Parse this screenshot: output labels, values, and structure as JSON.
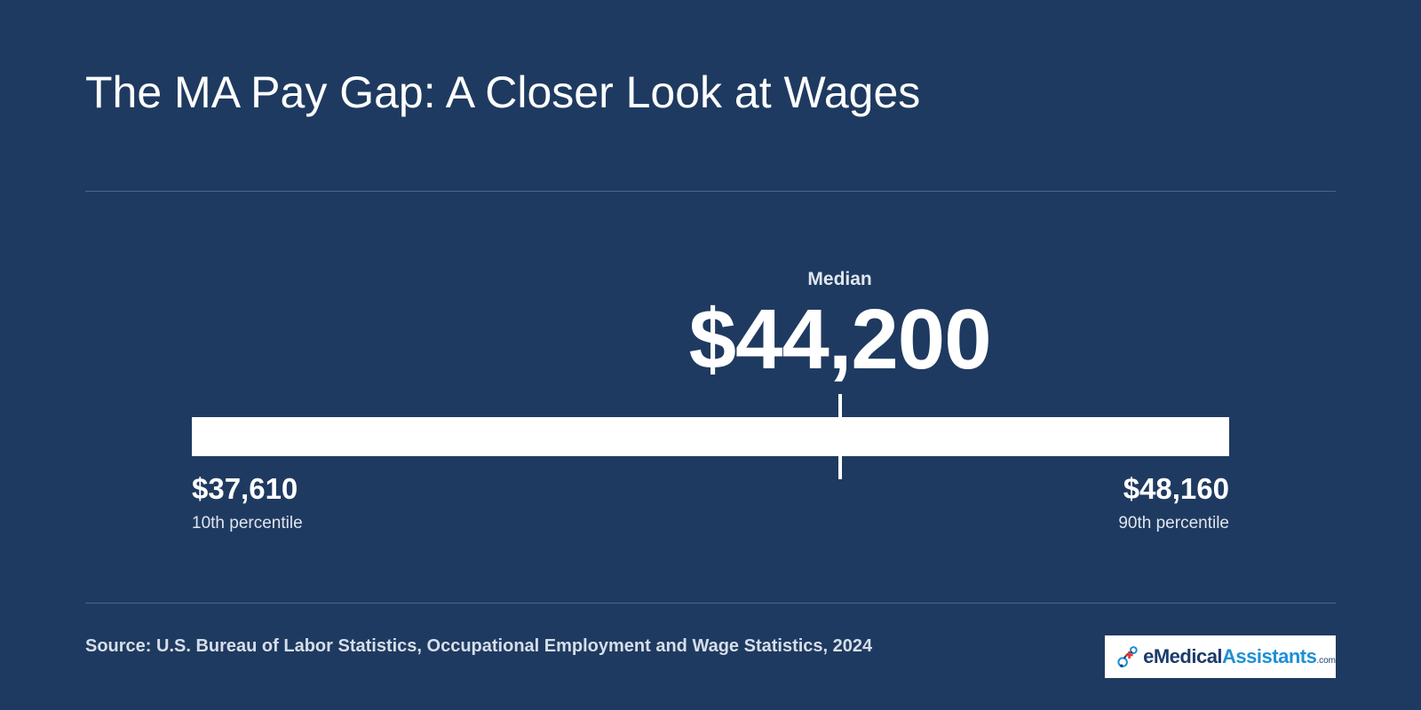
{
  "title": "The MA Pay Gap: A Closer Look at Wages",
  "source": "Source: U.S. Bureau of Labor Statistics, Occupational Employment and Wage Statistics, 2024",
  "logo": {
    "text_main": "eMedical",
    "text_accent": "Assistants",
    "text_suffix": ".com",
    "icon": "medical-cross-logo-icon"
  },
  "colors": {
    "background": "#1f3a60",
    "bar": "#ffffff",
    "text": "#ffffff",
    "muted_text": "#dfe6ef"
  },
  "chart_data": {
    "type": "range",
    "title": "",
    "median": {
      "label": "Median",
      "value": 44200,
      "display": "$44,200"
    },
    "low": {
      "label": "10th percentile",
      "value": 37610,
      "display": "$37,610"
    },
    "high": {
      "label": "90th percentile",
      "value": 48160,
      "display": "$48,160"
    },
    "xlim": [
      37610,
      48160
    ]
  }
}
